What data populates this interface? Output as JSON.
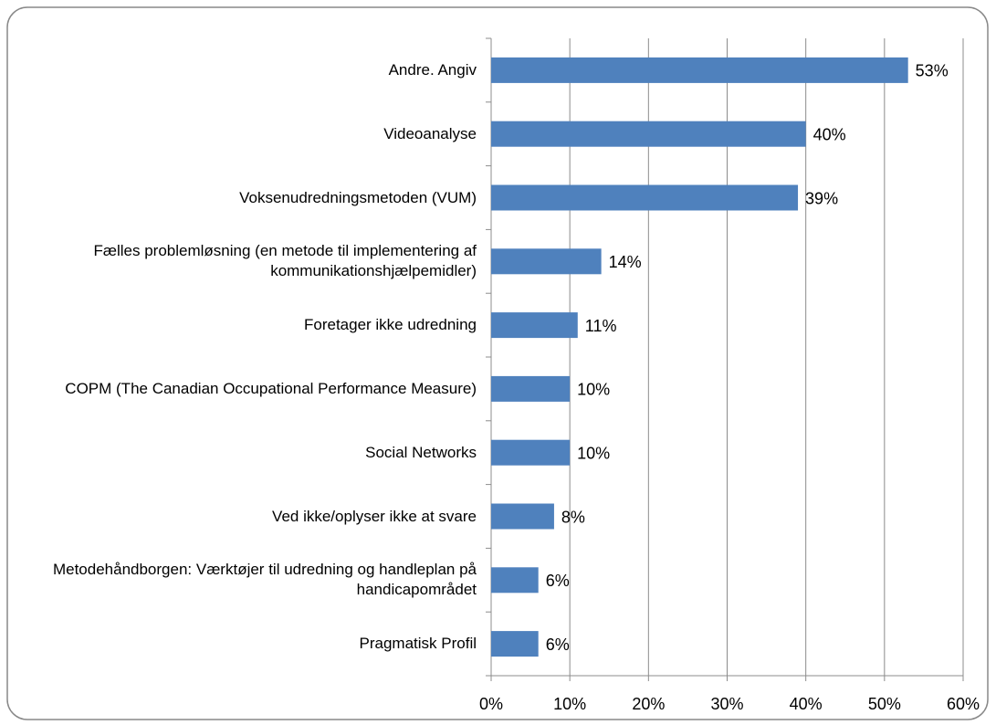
{
  "chart_data": {
    "type": "bar",
    "orientation": "horizontal",
    "categories": [
      "Andre. Angiv",
      "Videoanalyse",
      "Voksenudredningsmetoden (VUM)",
      "Fælles problemløsning (en metode til implementering af kommunikationshjælpemidler)",
      "Foretager ikke udredning",
      "COPM (The Canadian Occupational Performance Measure)",
      "Social Networks",
      "Ved ikke/oplyser ikke at svare",
      "Metodehåndborgen: Værktøjer til udredning og handleplan på handicapområdet",
      "Pragmatisk Profil"
    ],
    "values": [
      53,
      40,
      39,
      14,
      11,
      10,
      10,
      8,
      6,
      6
    ],
    "value_labels": [
      "53%",
      "40%",
      "39%",
      "14%",
      "11%",
      "10%",
      "10%",
      "8%",
      "6%",
      "6%"
    ],
    "color": "#4f81bd",
    "xlim": [
      0,
      60
    ],
    "xticks": [
      {
        "value": 0,
        "label": "0%"
      },
      {
        "value": 10,
        "label": "10%"
      },
      {
        "value": 20,
        "label": "20%"
      },
      {
        "value": 30,
        "label": "30%"
      },
      {
        "value": 40,
        "label": "40%"
      },
      {
        "value": 50,
        "label": "50%"
      },
      {
        "value": 60,
        "label": "60%"
      }
    ],
    "grid": true
  }
}
